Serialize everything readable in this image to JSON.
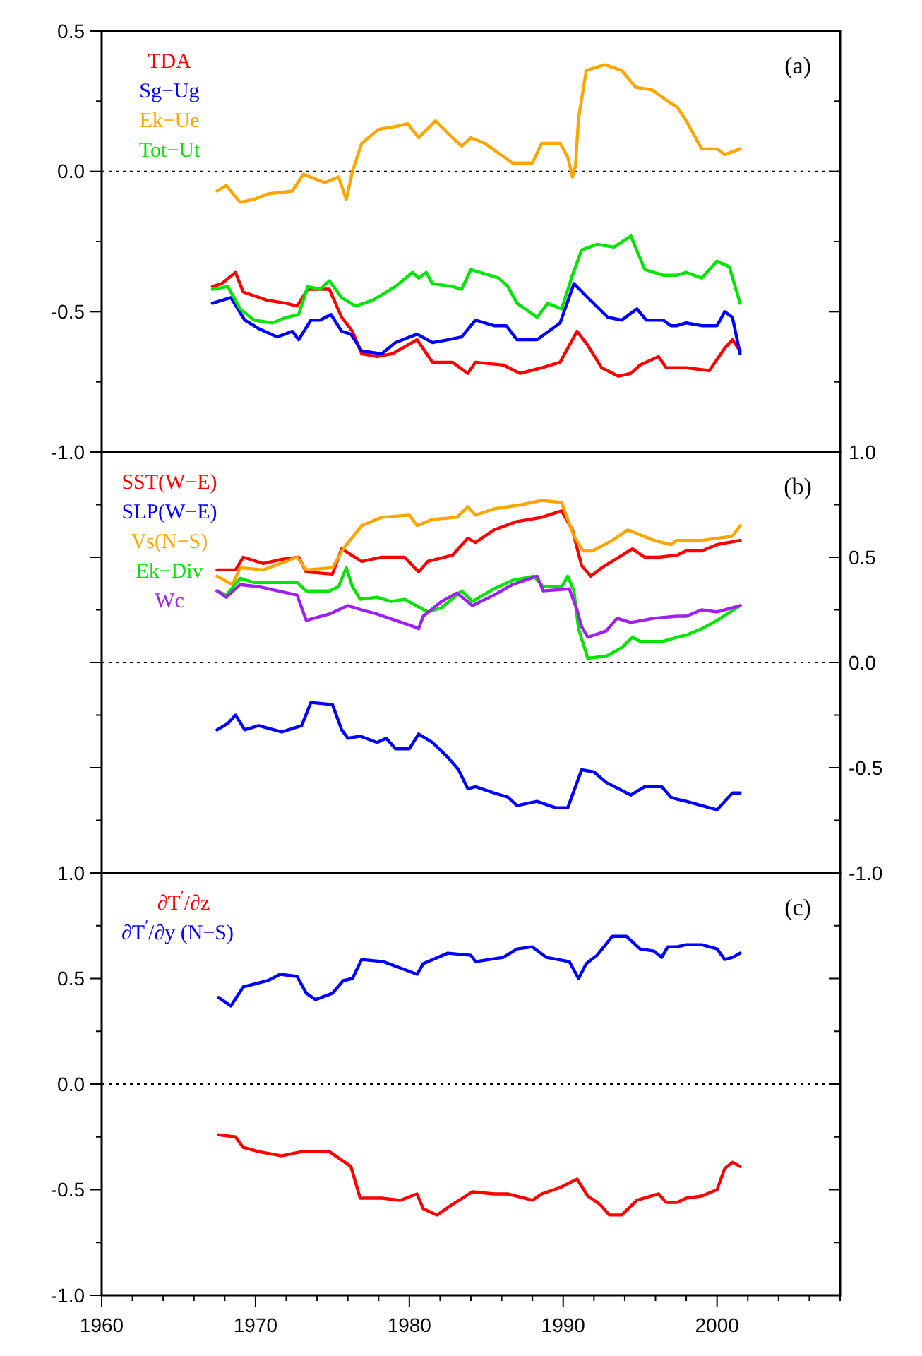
{
  "chart_data": [
    {
      "type": "line",
      "xlim": [
        1960,
        2008
      ],
      "ylim": [
        -1.0,
        0.5
      ],
      "yticks": [
        {
          "value": 0.5,
          "label": "0.5"
        },
        {
          "value": 0.25,
          "label": null
        },
        {
          "value": 0,
          "label": "0.0"
        },
        {
          "value": -0.25,
          "label": null
        },
        {
          "value": -0.5,
          "label": "-0.5"
        },
        {
          "value": -0.75,
          "label": null
        },
        {
          "value": -1.0,
          "label": "-1.0"
        }
      ],
      "tick_labels": "y",
      "legend": "top left",
      "grid": false,
      "marker": "none",
      "line_style": "solid",
      "ref_lines": [
        {
          "axis": "y",
          "value": 0,
          "line_style": "dotted",
          "color": "#000000"
        }
      ],
      "annotations": [
        "(a)"
      ],
      "series": [
        {
          "name": "TDA",
          "color": "#ff0000",
          "x": [
            1967.2,
            1967.8,
            1968.7,
            1969.2,
            1970.8,
            1972.0,
            1972.7,
            1973.4,
            1974.8,
            1975.6,
            1976.3,
            1976.9,
            1977.9,
            1978.9,
            1980.5,
            1981.5,
            1982.8,
            1983.8,
            1984.3,
            1986.1,
            1987.2,
            1988.6,
            1989.8,
            1990.9,
            1991.6,
            1992.5,
            1993.6,
            1994.4,
            1995.0,
            1996.2,
            1996.7,
            1997.4,
            1998,
            1999.5,
            2000.5,
            2001,
            2001.5
          ],
          "values": [
            -0.41,
            -0.4,
            -0.36,
            -0.43,
            -0.46,
            -0.47,
            -0.48,
            -0.42,
            -0.42,
            -0.52,
            -0.57,
            -0.65,
            -0.66,
            -0.65,
            -0.6,
            -0.68,
            -0.68,
            -0.72,
            -0.68,
            -0.69,
            -0.72,
            -0.7,
            -0.68,
            -0.57,
            -0.62,
            -0.7,
            -0.73,
            -0.72,
            -0.69,
            -0.66,
            -0.7,
            -0.7,
            -0.7,
            -0.71,
            -0.63,
            -0.6,
            -0.64
          ]
        },
        {
          "name": "Sg−Ug",
          "color": "#0000ff",
          "x": [
            1967.2,
            1968.4,
            1969.3,
            1970.2,
            1971.4,
            1972.4,
            1972.8,
            1973.6,
            1974.2,
            1974.9,
            1975.6,
            1976.2,
            1976.9,
            1978.2,
            1979.1,
            1980.5,
            1981.5,
            1982.5,
            1983.4,
            1984.3,
            1985.5,
            1986.3,
            1987.0,
            1988.3,
            1989.8,
            1990.7,
            1991.6,
            1992.9,
            1993.8,
            1994.8,
            1995.4,
            1996.5,
            1997.0,
            1997.4,
            1998,
            1999,
            2000,
            2000.5,
            2001,
            2001.5
          ],
          "values": [
            -0.47,
            -0.45,
            -0.53,
            -0.56,
            -0.59,
            -0.57,
            -0.6,
            -0.53,
            -0.53,
            -0.51,
            -0.57,
            -0.58,
            -0.64,
            -0.65,
            -0.61,
            -0.58,
            -0.61,
            -0.6,
            -0.59,
            -0.53,
            -0.55,
            -0.55,
            -0.6,
            -0.6,
            -0.54,
            -0.4,
            -0.45,
            -0.52,
            -0.53,
            -0.49,
            -0.53,
            -0.53,
            -0.55,
            -0.55,
            -0.54,
            -0.55,
            -0.55,
            -0.5,
            -0.52,
            -0.65
          ]
        },
        {
          "name": "Ek−Ue",
          "color": "#ffa500",
          "x": [
            1967.5,
            1968.1,
            1969.0,
            1969.9,
            1970.8,
            1972.4,
            1973.1,
            1974.5,
            1975.4,
            1975.9,
            1976.3,
            1976.9,
            1978.0,
            1979.1,
            1979.9,
            1980.6,
            1981.7,
            1982.8,
            1983.4,
            1984.0,
            1984.9,
            1986.7,
            1988.0,
            1988.6,
            1989.8,
            1990.3,
            1990.6,
            1990.8,
            1991.0,
            1991.5,
            1992.7,
            1993.8,
            1994.7,
            1995.8,
            1996.8,
            1997.4,
            1998,
            1999,
            2000,
            2000.5,
            2001.5
          ],
          "values": [
            -0.07,
            -0.05,
            -0.11,
            -0.1,
            -0.08,
            -0.07,
            -0.01,
            -0.04,
            -0.02,
            -0.1,
            0.0,
            0.1,
            0.15,
            0.16,
            0.17,
            0.12,
            0.18,
            0.12,
            0.09,
            0.12,
            0.1,
            0.03,
            0.03,
            0.1,
            0.1,
            0.05,
            -0.02,
            0.02,
            0.19,
            0.36,
            0.38,
            0.36,
            0.3,
            0.29,
            0.25,
            0.23,
            0.18,
            0.08,
            0.08,
            0.06,
            0.08
          ]
        },
        {
          "name": "Tot−Ut",
          "color": "#00e600",
          "x": [
            1967.2,
            1968.2,
            1969.0,
            1969.9,
            1971.1,
            1972.0,
            1972.8,
            1973.4,
            1974.2,
            1974.8,
            1975.6,
            1976.5,
            1977.6,
            1979.1,
            1980.2,
            1980.6,
            1981.1,
            1981.5,
            1982.8,
            1983.4,
            1984.0,
            1985.8,
            1986.4,
            1987.0,
            1988.3,
            1989.0,
            1989.9,
            1990.6,
            1991.2,
            1992.2,
            1993.3,
            1994.4,
            1995.3,
            1996.5,
            1997.4,
            1998,
            1999,
            2000,
            2000.8,
            2001.5
          ],
          "values": [
            -0.42,
            -0.41,
            -0.49,
            -0.53,
            -0.54,
            -0.52,
            -0.51,
            -0.41,
            -0.42,
            -0.39,
            -0.45,
            -0.48,
            -0.46,
            -0.41,
            -0.36,
            -0.38,
            -0.36,
            -0.4,
            -0.41,
            -0.42,
            -0.35,
            -0.38,
            -0.41,
            -0.47,
            -0.52,
            -0.47,
            -0.49,
            -0.37,
            -0.28,
            -0.26,
            -0.27,
            -0.23,
            -0.35,
            -0.37,
            -0.37,
            -0.36,
            -0.38,
            -0.32,
            -0.34,
            -0.47
          ]
        }
      ]
    },
    {
      "type": "line",
      "xlim": [
        1960,
        2008
      ],
      "y2lim": [
        -1.0,
        1.0
      ],
      "y2ticks": [
        {
          "value": 1.0,
          "label": "1.0"
        },
        {
          "value": 0.75,
          "label": null
        },
        {
          "value": 0.5,
          "label": "0.5"
        },
        {
          "value": 0.25,
          "label": null
        },
        {
          "value": 0,
          "label": "0.0"
        },
        {
          "value": -0.25,
          "label": null
        },
        {
          "value": -0.5,
          "label": "-0.5"
        },
        {
          "value": -0.75,
          "label": null
        },
        {
          "value": -1.0,
          "label": "-1.0"
        }
      ],
      "tick_labels": "y2",
      "legend": "top left",
      "grid": false,
      "marker": "none",
      "line_style": "solid",
      "ref_lines": [
        {
          "axis": "y2",
          "value": 0,
          "line_style": "dotted",
          "color": "#000000"
        }
      ],
      "annotations": [
        "(b)"
      ],
      "series": [
        {
          "name": "SST(W−E)",
          "color": "#ff0000",
          "axis": "y2",
          "x": [
            1967.5,
            1968.7,
            1969.2,
            1970.5,
            1971.7,
            1972.8,
            1973.3,
            1975.0,
            1975.6,
            1976.9,
            1978.2,
            1979.7,
            1980.6,
            1981.2,
            1982.8,
            1983.8,
            1984.3,
            1985.5,
            1987.0,
            1988.6,
            1989.9,
            1990.6,
            1991.2,
            1991.8,
            1992.5,
            1994.5,
            1995.3,
            1996.2,
            1997.4,
            1998,
            1999,
            2000,
            2001.5
          ],
          "values": [
            0.44,
            0.44,
            0.5,
            0.47,
            0.49,
            0.5,
            0.43,
            0.42,
            0.54,
            0.48,
            0.5,
            0.5,
            0.43,
            0.48,
            0.51,
            0.59,
            0.57,
            0.63,
            0.67,
            0.69,
            0.72,
            0.63,
            0.46,
            0.41,
            0.45,
            0.54,
            0.5,
            0.5,
            0.51,
            0.53,
            0.53,
            0.56,
            0.58
          ]
        },
        {
          "name": "SLP(W−E)",
          "color": "#0000ff",
          "axis": "y2",
          "x": [
            1967.5,
            1968.2,
            1968.7,
            1969.3,
            1970.2,
            1971.7,
            1973.0,
            1973.6,
            1975.0,
            1975.6,
            1976.0,
            1976.8,
            1977.9,
            1978.5,
            1979.1,
            1980.0,
            1980.6,
            1981.5,
            1982.5,
            1983.2,
            1983.8,
            1984.3,
            1985.5,
            1986.4,
            1987.0,
            1988.3,
            1989.5,
            1990.3,
            1991.2,
            1992.0,
            1992.8,
            1994.4,
            1995.3,
            1996.4,
            1997.0,
            1997.4,
            1998,
            1999,
            2000,
            2000.5,
            2001,
            2001.5
          ],
          "values": [
            -0.32,
            -0.29,
            -0.25,
            -0.32,
            -0.3,
            -0.33,
            -0.3,
            -0.19,
            -0.2,
            -0.32,
            -0.36,
            -0.35,
            -0.38,
            -0.36,
            -0.41,
            -0.41,
            -0.34,
            -0.38,
            -0.45,
            -0.51,
            -0.6,
            -0.59,
            -0.62,
            -0.64,
            -0.68,
            -0.66,
            -0.69,
            -0.69,
            -0.51,
            -0.52,
            -0.57,
            -0.63,
            -0.59,
            -0.59,
            -0.64,
            -0.65,
            -0.66,
            -0.68,
            -0.7,
            -0.66,
            -0.62,
            -0.62
          ]
        },
        {
          "name": "Vs(N−S)",
          "color": "#ffa500",
          "axis": "y2",
          "x": [
            1967.5,
            1968.5,
            1969.0,
            1970.5,
            1972.7,
            1973.3,
            1975.0,
            1975.7,
            1976.9,
            1978.2,
            1980.0,
            1980.5,
            1981.5,
            1983.1,
            1983.8,
            1984.3,
            1985.5,
            1987.3,
            1988.6,
            1989.9,
            1990.7,
            1991.3,
            1991.9,
            1993.2,
            1994.2,
            1995.9,
            1997.0,
            1997.4,
            1998,
            1999,
            2000,
            2001,
            2001.5
          ],
          "values": [
            0.41,
            0.37,
            0.45,
            0.44,
            0.5,
            0.44,
            0.45,
            0.54,
            0.65,
            0.69,
            0.7,
            0.65,
            0.68,
            0.69,
            0.74,
            0.7,
            0.73,
            0.75,
            0.77,
            0.76,
            0.6,
            0.53,
            0.53,
            0.58,
            0.63,
            0.58,
            0.56,
            0.58,
            0.58,
            0.58,
            0.59,
            0.6,
            0.65
          ]
        },
        {
          "name": "Ek−Div",
          "color": "#00e600",
          "axis": "y2",
          "x": [
            1967.5,
            1968.1,
            1969.0,
            1969.9,
            1971.1,
            1972.7,
            1973.3,
            1974.8,
            1975.4,
            1975.9,
            1976.3,
            1976.8,
            1977.9,
            1978.8,
            1979.7,
            1981.2,
            1982.1,
            1983.4,
            1984.1,
            1985.5,
            1986.7,
            1988.1,
            1988.7,
            1989.9,
            1990.3,
            1990.7,
            1991.0,
            1991.6,
            1992.8,
            1993.8,
            1994.5,
            1995.0,
            1996.5,
            1997.4,
            1998,
            1999,
            2000,
            2001.5
          ],
          "values": [
            0.34,
            0.32,
            0.4,
            0.38,
            0.38,
            0.38,
            0.34,
            0.34,
            0.36,
            0.45,
            0.36,
            0.3,
            0.31,
            0.29,
            0.3,
            0.24,
            0.26,
            0.34,
            0.29,
            0.35,
            0.39,
            0.41,
            0.36,
            0.36,
            0.41,
            0.34,
            0.16,
            0.02,
            0.03,
            0.07,
            0.12,
            0.1,
            0.1,
            0.12,
            0.13,
            0.16,
            0.2,
            0.27
          ]
        },
        {
          "name": "Wc",
          "color": "#a020f0",
          "axis": "y2",
          "x": [
            1967.5,
            1968.1,
            1969.0,
            1970.2,
            1972.7,
            1973.3,
            1974.8,
            1976.0,
            1976.9,
            1977.9,
            1979.1,
            1980.3,
            1980.6,
            1980.9,
            1982.1,
            1983.1,
            1984.1,
            1985.5,
            1986.7,
            1988.3,
            1988.7,
            1990.4,
            1990.9,
            1991.2,
            1991.6,
            1992.8,
            1993.5,
            1994.4,
            1995.9,
            1997.4,
            1998,
            1999,
            2000,
            2001.5
          ],
          "values": [
            0.34,
            0.31,
            0.37,
            0.36,
            0.32,
            0.2,
            0.23,
            0.27,
            0.25,
            0.23,
            0.2,
            0.17,
            0.16,
            0.22,
            0.29,
            0.33,
            0.27,
            0.32,
            0.37,
            0.41,
            0.34,
            0.35,
            0.25,
            0.17,
            0.12,
            0.15,
            0.21,
            0.19,
            0.21,
            0.22,
            0.22,
            0.25,
            0.24,
            0.27
          ]
        }
      ]
    },
    {
      "type": "line",
      "xlim": [
        1960,
        2008
      ],
      "xticks": [
        1960,
        {
          "value": 1962,
          "label": null
        },
        {
          "value": 1964,
          "label": null
        },
        {
          "value": 1966,
          "label": null
        },
        {
          "value": 1968,
          "label": null
        },
        1970,
        {
          "value": 1972,
          "label": null
        },
        {
          "value": 1974,
          "label": null
        },
        {
          "value": 1976,
          "label": null
        },
        {
          "value": 1978,
          "label": null
        },
        1980,
        {
          "value": 1982,
          "label": null
        },
        {
          "value": 1984,
          "label": null
        },
        {
          "value": 1986,
          "label": null
        },
        {
          "value": 1988,
          "label": null
        },
        1990,
        {
          "value": 1992,
          "label": null
        },
        {
          "value": 1994,
          "label": null
        },
        {
          "value": 1996,
          "label": null
        },
        {
          "value": 1998,
          "label": null
        },
        2000,
        {
          "value": 2002,
          "label": null
        },
        {
          "value": 2004,
          "label": null
        },
        {
          "value": 2006,
          "label": null
        },
        {
          "value": 2008,
          "label": null
        }
      ],
      "ylim": [
        -1.0,
        1.0
      ],
      "yticks": [
        {
          "value": 1.0,
          "label": "1.0"
        },
        {
          "value": 0.75,
          "label": null
        },
        {
          "value": 0.5,
          "label": "0.5"
        },
        {
          "value": 0.25,
          "label": null
        },
        {
          "value": 0,
          "label": "0.0"
        },
        {
          "value": -0.25,
          "label": null
        },
        {
          "value": -0.5,
          "label": "-0.5"
        },
        {
          "value": -0.75,
          "label": null
        },
        {
          "value": -1.0,
          "label": "-1.0"
        }
      ],
      "legend": "top left",
      "grid": false,
      "marker": "none",
      "line_style": "solid",
      "ref_lines": [
        {
          "axis": "y",
          "value": 0,
          "line_style": "dotted",
          "color": "#000000"
        }
      ],
      "annotations": [
        "(c)"
      ],
      "series": [
        {
          "name": "∂T$^{′}$/∂z",
          "color": "#ff0000",
          "x": [
            1967.6,
            1968.7,
            1969.2,
            1970.2,
            1971.7,
            1973.0,
            1974.8,
            1976.2,
            1976.8,
            1978.2,
            1979.4,
            1980.5,
            1980.9,
            1981.8,
            1982.8,
            1984.1,
            1985.5,
            1986.4,
            1988.0,
            1988.6,
            1989.8,
            1990.9,
            1991.6,
            1992.4,
            1993.0,
            1993.8,
            1994.8,
            1996.2,
            1996.7,
            1997.4,
            1998,
            1999,
            2000,
            2000.5,
            2001,
            2001.5
          ],
          "values": [
            -0.24,
            -0.25,
            -0.3,
            -0.32,
            -0.34,
            -0.32,
            -0.32,
            -0.39,
            -0.54,
            -0.54,
            -0.55,
            -0.52,
            -0.59,
            -0.62,
            -0.57,
            -0.51,
            -0.52,
            -0.52,
            -0.55,
            -0.52,
            -0.49,
            -0.45,
            -0.53,
            -0.57,
            -0.62,
            -0.62,
            -0.55,
            -0.52,
            -0.56,
            -0.56,
            -0.54,
            -0.53,
            -0.5,
            -0.4,
            -0.37,
            -0.39
          ]
        },
        {
          "name": "∂T$^{′}$/∂y (N−S)",
          "color": "#0000ff",
          "x": [
            1967.6,
            1968.4,
            1969.2,
            1970.8,
            1971.6,
            1972.7,
            1973.3,
            1973.9,
            1975.0,
            1975.7,
            1976.3,
            1976.9,
            1978.3,
            1979.4,
            1980.5,
            1980.9,
            1982.5,
            1984.0,
            1984.3,
            1986.1,
            1987.0,
            1988.0,
            1988.9,
            1990.4,
            1991.0,
            1991.5,
            1992.2,
            1993.2,
            1994.1,
            1995.0,
            1995.9,
            1996.4,
            1996.8,
            1997.4,
            1998,
            1999,
            2000,
            2000.5,
            2001,
            2001.5
          ],
          "values": [
            0.41,
            0.37,
            0.46,
            0.49,
            0.52,
            0.51,
            0.43,
            0.4,
            0.43,
            0.49,
            0.5,
            0.59,
            0.58,
            0.55,
            0.52,
            0.57,
            0.62,
            0.61,
            0.58,
            0.6,
            0.64,
            0.65,
            0.6,
            0.58,
            0.5,
            0.57,
            0.61,
            0.7,
            0.7,
            0.64,
            0.63,
            0.6,
            0.65,
            0.65,
            0.66,
            0.66,
            0.64,
            0.59,
            0.6,
            0.62
          ]
        }
      ]
    }
  ]
}
